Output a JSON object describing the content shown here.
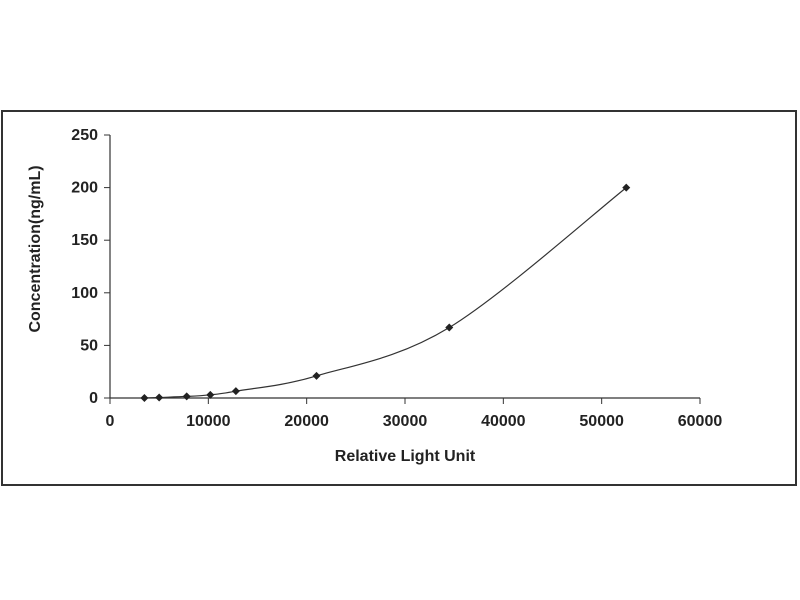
{
  "chart_data": {
    "type": "scatter",
    "xlabel": "Relative Light Unit",
    "ylabel": "Concentration(ng/mL)",
    "xlim": [
      0,
      60000
    ],
    "ylim": [
      0,
      250
    ],
    "xticks": [
      0,
      10000,
      20000,
      30000,
      40000,
      50000,
      60000
    ],
    "yticks": [
      0,
      50,
      100,
      150,
      200,
      250
    ],
    "grid": false,
    "series": [
      {
        "points": [
          {
            "x": 3500,
            "y": 0
          },
          {
            "x": 5000,
            "y": 0.5
          },
          {
            "x": 7800,
            "y": 1.5
          },
          {
            "x": 10200,
            "y": 3
          },
          {
            "x": 12800,
            "y": 6.5
          },
          {
            "x": 21000,
            "y": 21
          },
          {
            "x": 34500,
            "y": 67
          },
          {
            "x": 52500,
            "y": 200
          }
        ],
        "line": "smooth",
        "color": "#222222"
      }
    ]
  }
}
